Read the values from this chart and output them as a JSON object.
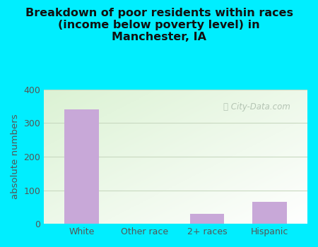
{
  "categories": [
    "White",
    "Other race",
    "2+ races",
    "Hispanic"
  ],
  "values": [
    340,
    0,
    30,
    65
  ],
  "bar_color": "#c8a8d8",
  "title": "Breakdown of poor residents within races\n(income below poverty level) in\nManchester, IA",
  "ylabel": "absolute numbers",
  "ylim": [
    0,
    400
  ],
  "yticks": [
    0,
    100,
    200,
    300,
    400
  ],
  "background_outer": "#00eeff",
  "grid_color": "#c8d8c0",
  "watermark": "City-Data.com",
  "title_fontsize": 11.5,
  "label_fontsize": 9.5,
  "tick_fontsize": 9
}
